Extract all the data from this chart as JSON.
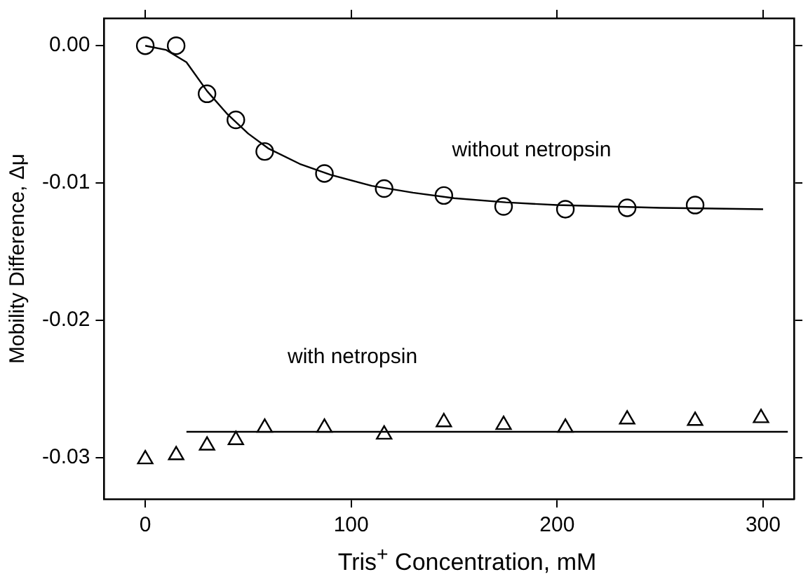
{
  "chart_data": {
    "type": "scatter",
    "xlabel": "Tris$^{+}$ Concentration, mM",
    "ylabel": "Mobility Difference, Δμ",
    "xlim": [
      -20,
      315
    ],
    "xticks": [
      0,
      100,
      200,
      300
    ],
    "ylim": [
      -0.033,
      0.002
    ],
    "yticks": [
      {
        "value": 0,
        "label": "0.00"
      },
      -0.01,
      -0.02,
      -0.03
    ],
    "grid": false,
    "legend": false,
    "series": [
      {
        "name": "without netropsin",
        "marker": "circle",
        "color": "#000000",
        "x": [
          0,
          15,
          30,
          44,
          58,
          87,
          116,
          145,
          174,
          204,
          234,
          267
        ],
        "values": [
          0,
          0,
          -0.0035,
          -0.0054,
          -0.0077,
          -0.0093,
          -0.0104,
          -0.0109,
          -0.0117,
          -0.0119,
          -0.0118,
          -0.0116
        ]
      },
      {
        "type": "line",
        "marker": "none",
        "line_style": "solid",
        "color": "#000000",
        "x": [
          0,
          10,
          20,
          30,
          40,
          50,
          60,
          75,
          90,
          110,
          130,
          150,
          175,
          200,
          250,
          300
        ],
        "values": [
          0,
          -0.0003,
          -0.0012,
          -0.0033,
          -0.005,
          -0.0064,
          -0.0075,
          -0.0086,
          -0.0094,
          -0.0102,
          -0.0107,
          -0.0111,
          -0.0114,
          -0.0116,
          -0.0118,
          -0.0119
        ]
      },
      {
        "name": "with netropsin",
        "marker": "triangle",
        "color": "#000000",
        "x": [
          0,
          15,
          30,
          44,
          58,
          87,
          116,
          145,
          174,
          204,
          234,
          267,
          299
        ],
        "values": [
          -0.0301,
          -0.0298,
          -0.0291,
          -0.0287,
          -0.0278,
          -0.0278,
          -0.0283,
          -0.0274,
          -0.0276,
          -0.0278,
          -0.0272,
          -0.0273,
          -0.0271
        ]
      },
      {
        "type": "line",
        "marker": "none",
        "line_style": "solid",
        "color": "#000000",
        "x": [
          20,
          312
        ],
        "values": [
          -0.0281,
          -0.0281
        ]
      }
    ]
  }
}
